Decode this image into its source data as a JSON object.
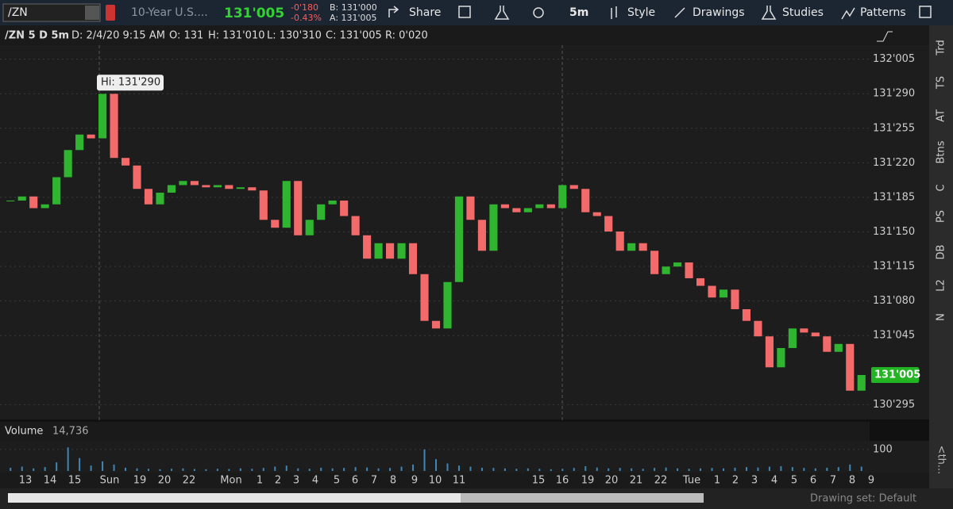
{
  "toolbar": {
    "symbol": "/ZN",
    "description": "10-Year U.S....",
    "last": "131'005",
    "net_change": "-0'180",
    "pct_change": "-0.43%",
    "bid": "B: 131'000",
    "ask": "A: 131'005",
    "share": "Share",
    "aggregation": "5m",
    "style": "Style",
    "drawings": "Drawings",
    "studies": "Studies",
    "patterns": "Patterns"
  },
  "info_bar": {
    "title": "/ZN 5 D 5m",
    "date": "D: 2/4/20 9:15 AM",
    "open": "O: 131",
    "high": "H: 131'010",
    "low": "L: 130'310",
    "close": "C: 131'005",
    "range": "R: 0'020"
  },
  "chart_data": {
    "type": "candlestick",
    "values": [
      131.568,
      131.581,
      131.544,
      131.556,
      131.642,
      131.728,
      131.777,
      131.765,
      131.906,
      131.703,
      131.679,
      131.605,
      131.556,
      131.593,
      131.617,
      131.63,
      131.617,
      131.61,
      131.617,
      131.605,
      131.61,
      131.6,
      131.507,
      131.482,
      131.63,
      131.458,
      131.507,
      131.556,
      131.568,
      131.519,
      131.458,
      131.384,
      131.433,
      131.384,
      131.433,
      131.335,
      131.187,
      131.163,
      131.31,
      131.581,
      131.507,
      131.409,
      131.556,
      131.544,
      131.531,
      131.544,
      131.556,
      131.544,
      131.617,
      131.605,
      131.531,
      131.519,
      131.47,
      131.409,
      131.433,
      131.409,
      131.335,
      131.359,
      131.372,
      131.322,
      131.298,
      131.261,
      131.286,
      131.224,
      131.187,
      131.138,
      131.04,
      131.101,
      131.163,
      131.15,
      131.138,
      131.089,
      131.114,
      130.966,
      131.015625
    ],
    "up_color": "#2fb52f",
    "down_color": "#f26a6a",
    "ylim": [
      130.875,
      132.06
    ],
    "yticks": [
      {
        "value": 132.015625,
        "label": "132'005"
      },
      {
        "value": 131.90625,
        "label": "131'290"
      },
      {
        "value": 131.796875,
        "label": "131'255"
      },
      {
        "value": 131.6875,
        "label": "131'220"
      },
      {
        "value": 131.578125,
        "label": "131'185"
      },
      {
        "value": 131.46875,
        "label": "131'150"
      },
      {
        "value": 131.359375,
        "label": "131'115"
      },
      {
        "value": 131.25,
        "label": "131'080"
      },
      {
        "value": 131.140625,
        "label": "131'045"
      },
      {
        "value": 130.921875,
        "label": "130'295"
      }
    ],
    "grid": true,
    "hi_label": {
      "value": 131.90625,
      "label": "Hi: 131'290"
    },
    "last_label": {
      "value": 131.015625,
      "label": "131'005"
    },
    "x_labels": [
      "13",
      "14",
      "15",
      "Sun",
      "19",
      "20",
      "22",
      "Mon",
      "1",
      "2",
      "3",
      "4",
      "5",
      "6",
      "7",
      "8",
      "9",
      "10",
      "11",
      "15",
      "16",
      "19",
      "20",
      "21",
      "22",
      "Tue",
      "1",
      "2",
      "3",
      "4",
      "5",
      "6",
      "7",
      "8",
      "9"
    ],
    "volume": {
      "title": "Volume",
      "total": "14,736",
      "color": "#3f86b5",
      "values": [
        15,
        20,
        12,
        18,
        40,
        110,
        60,
        25,
        45,
        30,
        15,
        12,
        10,
        8,
        10,
        12,
        9,
        8,
        10,
        9,
        12,
        10,
        14,
        20,
        25,
        12,
        10,
        15,
        12,
        14,
        18,
        16,
        12,
        14,
        20,
        30,
        100,
        55,
        35,
        25,
        20,
        15,
        14,
        12,
        10,
        12,
        10,
        8,
        10,
        14,
        22,
        16,
        12,
        14,
        12,
        10,
        14,
        16,
        12,
        10,
        12,
        14,
        12,
        15,
        18,
        16,
        20,
        22,
        18,
        14,
        12,
        15,
        18,
        30,
        20
      ],
      "ylim": [
        0,
        133
      ],
      "yticks": [
        100
      ]
    }
  },
  "side_tabs": [
    "Trd",
    "TS",
    "AT",
    "Btns",
    "C",
    "PS",
    "DB",
    "L2",
    "N"
  ],
  "side_more": "<th...",
  "footer": "Drawing set: Default"
}
